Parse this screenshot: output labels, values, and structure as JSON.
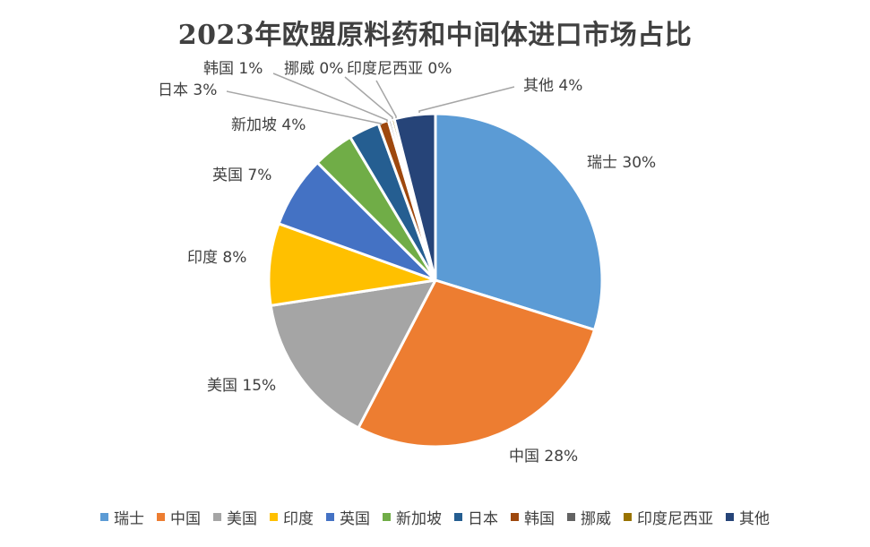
{
  "chart_data": {
    "type": "pie",
    "title": "2023年欧盟原料药和中间体进口市场占比",
    "slices": [
      {
        "name": "瑞士",
        "value": 30,
        "label": "瑞士 30%",
        "color": "#5B9BD5"
      },
      {
        "name": "中国",
        "value": 28,
        "label": "中国 28%",
        "color": "#ED7D31"
      },
      {
        "name": "美国",
        "value": 15,
        "label": "美国 15%",
        "color": "#A5A5A5"
      },
      {
        "name": "印度",
        "value": 8,
        "label": "印度 8%",
        "color": "#FFC000"
      },
      {
        "name": "英国",
        "value": 7,
        "label": "英国 7%",
        "color": "#4472C4"
      },
      {
        "name": "新加坡",
        "value": 4,
        "label": "新加坡 4%",
        "color": "#70AD47"
      },
      {
        "name": "日本",
        "value": 3,
        "label": "日本 3%",
        "color": "#255E91"
      },
      {
        "name": "韩国",
        "value": 1,
        "label": "韩国 1%",
        "color": "#9E480E"
      },
      {
        "name": "挪威",
        "value": 0.3,
        "label": "挪威 0%",
        "color": "#636363"
      },
      {
        "name": "印度尼西亚",
        "value": 0.3,
        "label": "印度尼西亚 0%",
        "color": "#997300"
      },
      {
        "name": "其他",
        "value": 4,
        "label": "其他 4%",
        "color": "#264478"
      }
    ],
    "legend_position": "bottom"
  }
}
